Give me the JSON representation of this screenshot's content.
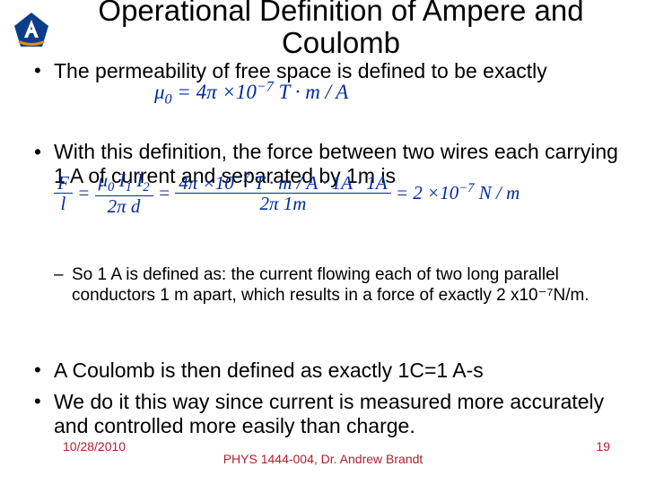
{
  "title": "Operational Definition of Ampere and Coulomb",
  "bullet1": "The  permeability of free space is defined to be exactly",
  "eq1_html": "μ<sub>0</sub> = 4π ×10<sup>−7</sup> <span style='font-style:italic'>T · m / A</span>",
  "bullet2": "With this definition, the force between two wires each carrying 1 A of current and separated by 1m is",
  "eq2": {
    "lhs_num": "F",
    "lhs_den": "l",
    "eq": " = ",
    "a_num": "μ<sub>0</sub> I<sub>1</sub> I<sub>2</sub>",
    "a_den": "2π   d",
    "b_num": "4π ×10<sup>−7</sup> T · m / A · 1A · 1A",
    "b_den": "2π            1m",
    "rhs": " = 2 ×10<sup>−7</sup> N / m"
  },
  "sub1": "So 1 A is defined as: the current flowing each of two long parallel conductors 1 m apart, which results in a force of exactly  2 x10⁻⁷N/m.",
  "bullet3": "A Coulomb is then defined as exactly 1C=1 A-s",
  "bullet4": "We do it this way since current is measured more accurately and controlled more easily than charge.",
  "footer": {
    "date": "10/28/2010",
    "center": "PHYS 1444-004, Dr. Andrew Brandt",
    "page": "19"
  },
  "colors": {
    "text": "#000000",
    "equation": "#002ba0",
    "footer": "#b02030",
    "logo_blue": "#0b3e8a",
    "logo_orange": "#e68a1f"
  }
}
